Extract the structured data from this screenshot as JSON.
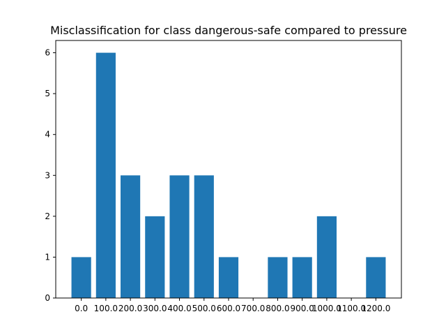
{
  "chart_data": {
    "type": "bar",
    "title": "Misclassification for class dangerous-safe compared to pressure",
    "xlabel": "",
    "ylabel": "",
    "categories": [
      "0.0",
      "100.0",
      "200.0",
      "300.0",
      "400.0",
      "500.0",
      "600.0",
      "700.0",
      "800.0",
      "900.0",
      "1000.0",
      "1100.0",
      "1200.0"
    ],
    "values": [
      1,
      6,
      3,
      2,
      3,
      3,
      1,
      0,
      1,
      1,
      2,
      0,
      1
    ],
    "ylim": [
      0,
      6.3
    ],
    "yticks": [
      0,
      1,
      2,
      3,
      4,
      5,
      6
    ],
    "ytick_labels": [
      "0",
      "1",
      "2",
      "3",
      "4",
      "5",
      "6"
    ],
    "bar_color": "#1f77b4",
    "grid": false,
    "legend": "none"
  }
}
